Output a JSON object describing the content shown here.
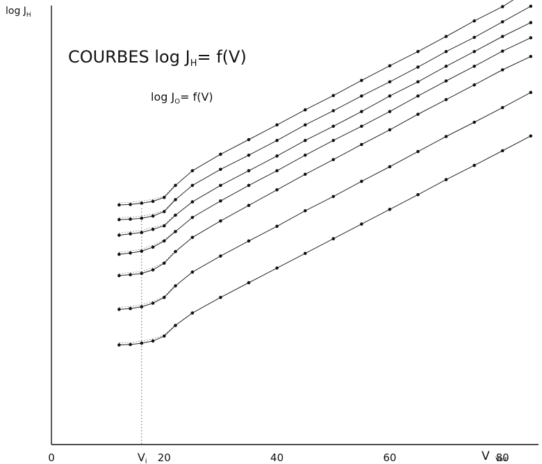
{
  "chart_data": {
    "type": "line",
    "title": "COURBES log J",
    "title_sub": "H",
    "title_rest": "= f(V)",
    "subtitle": "log J",
    "subtitle_sub": "O",
    "subtitle_rest": "= f(V)",
    "ylabel": "log J",
    "ylabel_sub": "H",
    "xlabel": "V",
    "xlabel_unit": "Volt",
    "x_ticks": [
      "0",
      "20",
      "40",
      "60",
      "80"
    ],
    "x_tick_values": [
      0,
      20,
      40,
      60,
      80
    ],
    "xlim": [
      0,
      87
    ],
    "ylim": [
      0,
      100
    ],
    "annotation": "V",
    "annotation_sub": "i",
    "annotation_x": 16,
    "grid": false,
    "series": [
      {
        "x": [
          12,
          14,
          16,
          18,
          20,
          22,
          25,
          30,
          35,
          40,
          45,
          50,
          55,
          60,
          65,
          70,
          75,
          80,
          85
        ],
        "y": [
          53.9,
          54.0,
          54.3,
          54.7,
          55.6,
          58.3,
          61.6,
          65.3,
          68.6,
          71.9,
          75.3,
          78.5,
          81.9,
          85.2,
          88.4,
          91.8,
          95.3,
          98.5,
          102.5
        ]
      },
      {
        "x": [
          12,
          14,
          16,
          18,
          20,
          22,
          25,
          30,
          35,
          40,
          45,
          50,
          55,
          60,
          65,
          70,
          75,
          80,
          85
        ],
        "y": [
          50.6,
          50.7,
          50.9,
          51.4,
          52.4,
          55.1,
          58.3,
          61.9,
          65.1,
          68.4,
          71.9,
          75.1,
          78.4,
          81.6,
          84.9,
          88.4,
          91.6,
          95.1,
          98.6
        ]
      },
      {
        "x": [
          12,
          14,
          16,
          18,
          20,
          22,
          25,
          30,
          35,
          40,
          45,
          50,
          55,
          60,
          65,
          70,
          75,
          80,
          85
        ],
        "y": [
          47.1,
          47.4,
          47.7,
          48.4,
          49.2,
          51.6,
          54.6,
          58.3,
          61.6,
          64.9,
          68.4,
          71.6,
          74.9,
          78.4,
          81.6,
          85.1,
          88.4,
          91.8,
          94.9
        ]
      },
      {
        "x": [
          12,
          14,
          16,
          18,
          20,
          22,
          25,
          30,
          35,
          40,
          45,
          50,
          55,
          60,
          65,
          70,
          75,
          80,
          85
        ],
        "y": [
          42.8,
          43.1,
          43.5,
          44.4,
          45.8,
          47.9,
          51.1,
          54.8,
          58.3,
          61.6,
          65.1,
          68.4,
          71.6,
          74.9,
          78.4,
          81.8,
          85.1,
          88.5,
          91.5
        ]
      },
      {
        "x": [
          12,
          14,
          16,
          18,
          20,
          22,
          25,
          30,
          35,
          40,
          45,
          50,
          55,
          60,
          65,
          70,
          75,
          80,
          85
        ],
        "y": [
          38.0,
          38.2,
          38.5,
          39.3,
          40.8,
          43.4,
          46.6,
          50.3,
          53.8,
          57.3,
          60.8,
          64.1,
          67.5,
          70.8,
          74.3,
          77.6,
          80.9,
          84.3,
          87.3
        ]
      },
      {
        "x": [
          12,
          14,
          16,
          18,
          20,
          22,
          25,
          30,
          35,
          40,
          45,
          50,
          55,
          60,
          65,
          70,
          75,
          80,
          85
        ],
        "y": [
          30.4,
          30.6,
          31.0,
          31.8,
          33.1,
          35.7,
          38.8,
          42.4,
          45.8,
          49.1,
          52.6,
          55.8,
          59.2,
          62.5,
          65.9,
          69.3,
          72.5,
          75.8,
          79.2
        ]
      },
      {
        "x": [
          12,
          14,
          16,
          18,
          20,
          22,
          25,
          30,
          35,
          40,
          45,
          50,
          55,
          60,
          65,
          70,
          75,
          80,
          85
        ],
        "y": [
          22.4,
          22.5,
          22.8,
          23.3,
          24.4,
          26.8,
          29.6,
          33.1,
          36.4,
          39.7,
          43.0,
          46.3,
          49.6,
          52.9,
          56.2,
          59.6,
          62.8,
          66.1,
          69.4
        ]
      }
    ]
  }
}
